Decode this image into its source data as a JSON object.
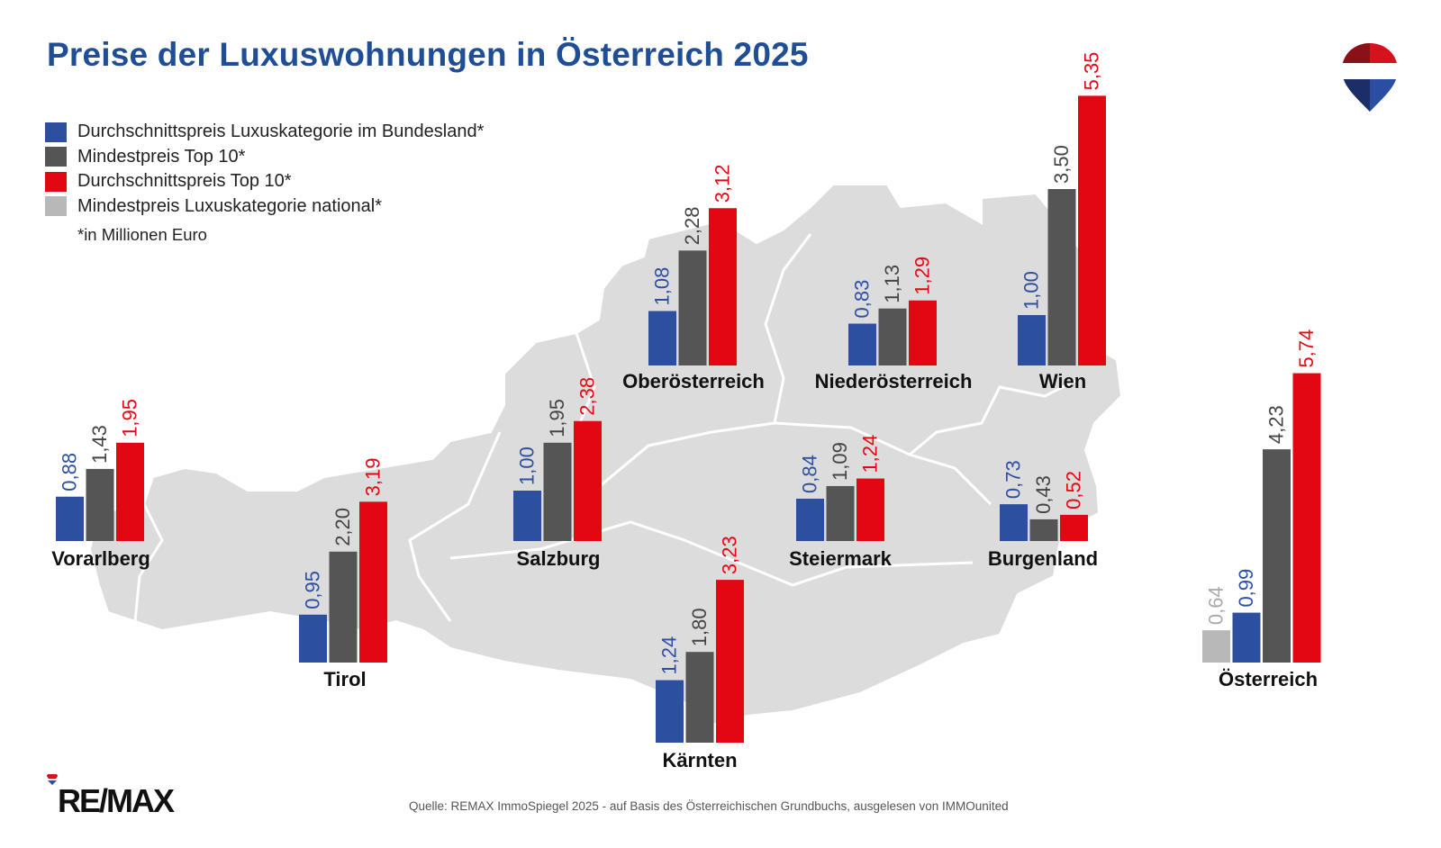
{
  "title": "Preise der Luxuswohnungen in Österreich 2025",
  "legend": [
    {
      "label": "Durchschnittspreis Luxuskategorie im Bundesland*",
      "color": "#2c4fa0"
    },
    {
      "label": "Mindestpreis Top 10*",
      "color": "#555555"
    },
    {
      "label": "Durchschnittspreis Top 10*",
      "color": "#e30613"
    },
    {
      "label": "Mindestpreis Luxuskategorie national*",
      "color": "#b8b8b8"
    }
  ],
  "note": "*in Millionen Euro",
  "source": "Quelle: REMAX ImmoSpiegel 2025 - auf Basis des Österreichischen Grundbuchs, ausgelesen von IMMOunited",
  "logo": "RE/MAX",
  "chart_data": {
    "type": "bar",
    "unit": "Millionen Euro",
    "grid": false,
    "series_colors": {
      "Durchschnittspreis Luxuskategorie im Bundesland*": "#2c4fa0",
      "Mindestpreis Top 10*": "#555555",
      "Durchschnittspreis Top 10*": "#e30613",
      "Mindestpreis Luxuskategorie national*": "#b8b8b8"
    },
    "groups": [
      {
        "name": "Vorarlberg",
        "values": [
          {
            "series": "Durchschnittspreis Luxuskategorie im Bundesland*",
            "value": 0.88,
            "label": "0,88"
          },
          {
            "series": "Mindestpreis Top 10*",
            "value": 1.43,
            "label": "1,43"
          },
          {
            "series": "Durchschnittspreis Top 10*",
            "value": 1.95,
            "label": "1,95"
          }
        ]
      },
      {
        "name": "Tirol",
        "values": [
          {
            "series": "Durchschnittspreis Luxuskategorie im Bundesland*",
            "value": 0.95,
            "label": "0,95"
          },
          {
            "series": "Mindestpreis Top 10*",
            "value": 2.2,
            "label": "2,20"
          },
          {
            "series": "Durchschnittspreis Top 10*",
            "value": 3.19,
            "label": "3,19"
          }
        ]
      },
      {
        "name": "Salzburg",
        "values": [
          {
            "series": "Durchschnittspreis Luxuskategorie im Bundesland*",
            "value": 1.0,
            "label": "1,00"
          },
          {
            "series": "Mindestpreis Top 10*",
            "value": 1.95,
            "label": "1,95"
          },
          {
            "series": "Durchschnittspreis Top 10*",
            "value": 2.38,
            "label": "2,38"
          }
        ]
      },
      {
        "name": "Oberösterreich",
        "values": [
          {
            "series": "Durchschnittspreis Luxuskategorie im Bundesland*",
            "value": 1.08,
            "label": "1,08"
          },
          {
            "series": "Mindestpreis Top 10*",
            "value": 2.28,
            "label": "2,28"
          },
          {
            "series": "Durchschnittspreis Top 10*",
            "value": 3.12,
            "label": "3,12"
          }
        ]
      },
      {
        "name": "Niederösterreich",
        "values": [
          {
            "series": "Durchschnittspreis Luxuskategorie im Bundesland*",
            "value": 0.83,
            "label": "0,83"
          },
          {
            "series": "Mindestpreis Top 10*",
            "value": 1.13,
            "label": "1,13"
          },
          {
            "series": "Durchschnittspreis Top 10*",
            "value": 1.29,
            "label": "1,29"
          }
        ]
      },
      {
        "name": "Wien",
        "values": [
          {
            "series": "Durchschnittspreis Luxuskategorie im Bundesland*",
            "value": 1.0,
            "label": "1,00"
          },
          {
            "series": "Mindestpreis Top 10*",
            "value": 3.5,
            "label": "3,50"
          },
          {
            "series": "Durchschnittspreis Top 10*",
            "value": 5.35,
            "label": "5,35"
          }
        ]
      },
      {
        "name": "Steiermark",
        "values": [
          {
            "series": "Durchschnittspreis Luxuskategorie im Bundesland*",
            "value": 0.84,
            "label": "0,84"
          },
          {
            "series": "Mindestpreis Top 10*",
            "value": 1.09,
            "label": "1,09"
          },
          {
            "series": "Durchschnittspreis Top 10*",
            "value": 1.24,
            "label": "1,24"
          }
        ]
      },
      {
        "name": "Burgenland",
        "values": [
          {
            "series": "Durchschnittspreis Luxuskategorie im Bundesland*",
            "value": 0.73,
            "label": "0,73"
          },
          {
            "series": "Mindestpreis Top 10*",
            "value": 0.43,
            "label": "0,43"
          },
          {
            "series": "Durchschnittspreis Top 10*",
            "value": 0.52,
            "label": "0,52"
          }
        ]
      },
      {
        "name": "Kärnten",
        "values": [
          {
            "series": "Durchschnittspreis Luxuskategorie im Bundesland*",
            "value": 1.24,
            "label": "1,24"
          },
          {
            "series": "Mindestpreis Top 10*",
            "value": 1.8,
            "label": "1,80"
          },
          {
            "series": "Durchschnittspreis Top 10*",
            "value": 3.23,
            "label": "3,23"
          }
        ]
      },
      {
        "name": "Österreich",
        "values": [
          {
            "series": "Mindestpreis Luxuskategorie national*",
            "value": 0.64,
            "label": "0,64"
          },
          {
            "series": "Durchschnittspreis Luxuskategorie im Bundesland*",
            "value": 0.99,
            "label": "0,99"
          },
          {
            "series": "Mindestpreis Top 10*",
            "value": 4.23,
            "label": "4,23"
          },
          {
            "series": "Durchschnittspreis Top 10*",
            "value": 5.74,
            "label": "5,74"
          }
        ]
      }
    ]
  }
}
